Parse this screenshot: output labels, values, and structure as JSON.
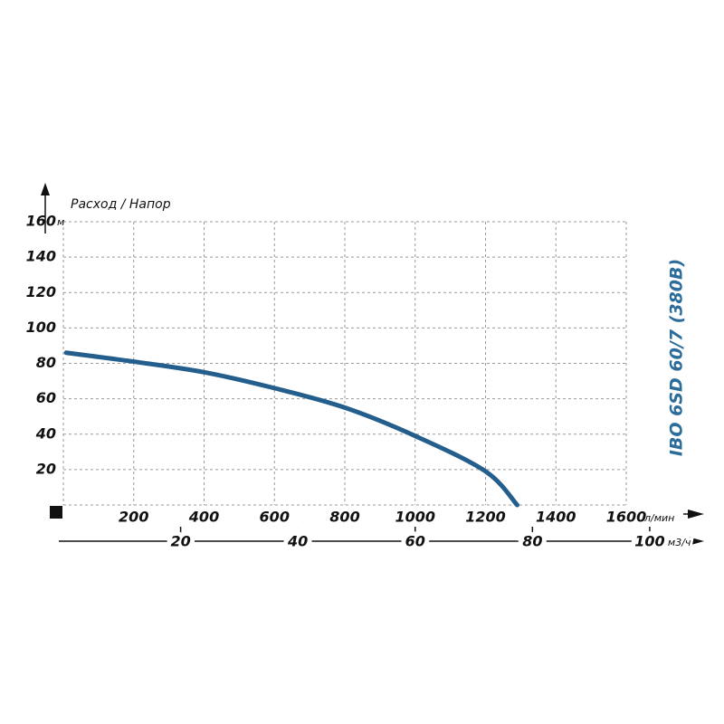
{
  "chart_data": {
    "type": "line",
    "title": "IBO 6SD 60/7 (380В)",
    "axis_label": "Расход / Напор",
    "y_unit": "м",
    "x_unit": "л/мин",
    "x2_unit": "м3/ч",
    "x": [
      8,
      200,
      400,
      600,
      800,
      1000,
      1200,
      1290
    ],
    "series": [
      {
        "color": "#245e8c",
        "values": [
          86,
          81,
          75,
          66,
          55,
          39,
          19,
          0
        ]
      }
    ],
    "xlim": [
      0,
      1600
    ],
    "xticks": [
      200,
      400,
      600,
      800,
      1000,
      1200,
      1400,
      1600
    ],
    "ylim": [
      0,
      160
    ],
    "yticks": [
      20,
      40,
      60,
      80,
      100,
      120,
      140,
      160
    ],
    "x2lim": [
      0,
      96
    ],
    "x2ticks": [
      20,
      40,
      60,
      80,
      100
    ],
    "grid": true,
    "title_color": "#2b6c9a"
  }
}
